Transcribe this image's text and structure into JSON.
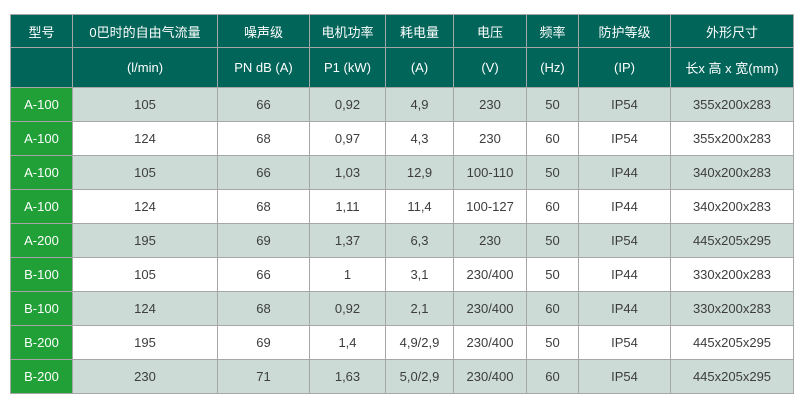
{
  "colors": {
    "header_bg": "#01655a",
    "model_bg": "#21a038",
    "row_alt_bg": "#ccdbd5",
    "row_plain_bg": "#ffffff",
    "border_color": "#a6a6a6",
    "header_text": "#ffffff",
    "cell_text": "#3d3d3d"
  },
  "table": {
    "header_row1": [
      "型号",
      "0巴时的自由气流量",
      "噪声级",
      "电机功率",
      "耗电量",
      "电压",
      "频率",
      "防护等级",
      "外形尺寸"
    ],
    "header_row2": [
      "",
      "(l/min)",
      "PN dB (A)",
      "P1 (kW)",
      "(A)",
      "(V)",
      "(Hz)",
      "(IP)",
      "长x 高 x 宽(mm)"
    ],
    "rows": [
      [
        "A-100",
        "105",
        "66",
        "0,92",
        "4,9",
        "230",
        "50",
        "IP54",
        "355x200x283"
      ],
      [
        "A-100",
        "124",
        "68",
        "0,97",
        "4,3",
        "230",
        "60",
        "IP54",
        "355x200x283"
      ],
      [
        "A-100",
        "105",
        "66",
        "1,03",
        "12,9",
        "100-110",
        "50",
        "IP44",
        "340x200x283"
      ],
      [
        "A-100",
        "124",
        "68",
        "1,11",
        "11,4",
        "100-127",
        "60",
        "IP44",
        "340x200x283"
      ],
      [
        "A-200",
        "195",
        "69",
        "1,37",
        "6,3",
        "230",
        "50",
        "IP54",
        "445x205x295"
      ],
      [
        "B-100",
        "105",
        "66",
        "1",
        "3,1",
        "230/400",
        "50",
        "IP44",
        "330x200x283"
      ],
      [
        "B-100",
        "124",
        "68",
        "0,92",
        "2,1",
        "230/400",
        "60",
        "IP44",
        "330x200x283"
      ],
      [
        "B-200",
        "195",
        "69",
        "1,4",
        "4,9/2,9",
        "230/400",
        "50",
        "IP54",
        "445x205x295"
      ],
      [
        "B-200",
        "230",
        "71",
        "1,63",
        "5,0/2,9",
        "230/400",
        "60",
        "IP54",
        "445x205x295"
      ]
    ]
  }
}
